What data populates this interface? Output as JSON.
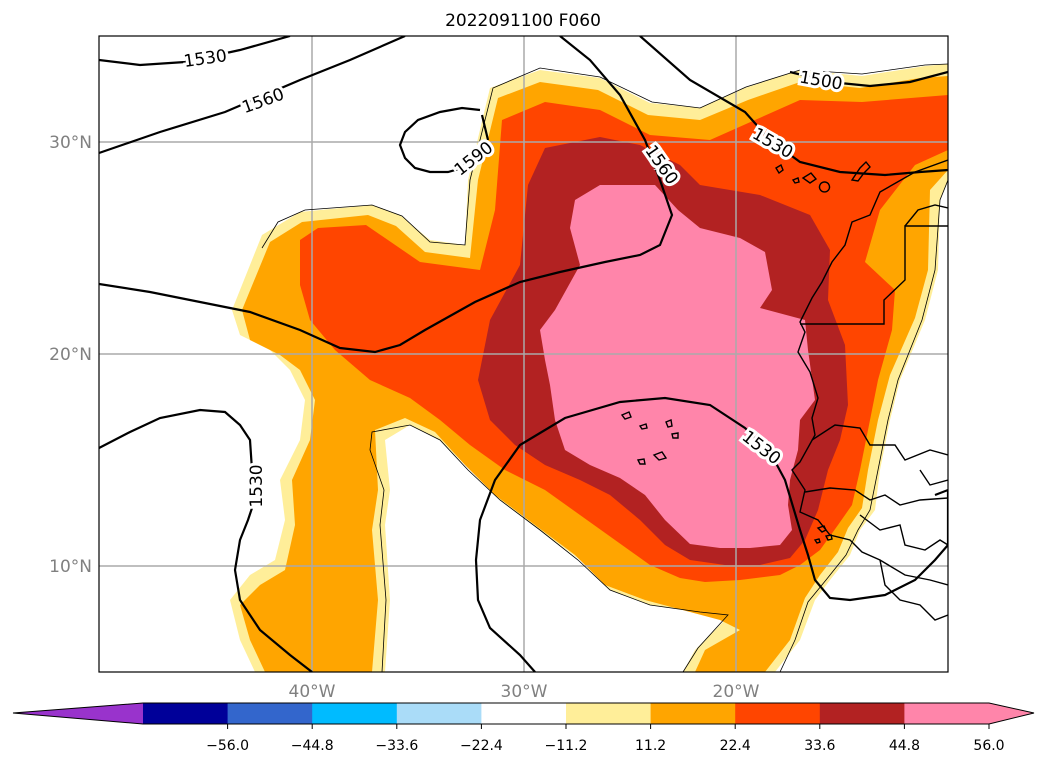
{
  "title": "2022091100 F060",
  "map": {
    "lat_labels": [
      "30°N",
      "20°N",
      "10°N"
    ],
    "lon_labels": [
      "40°W",
      "30°W",
      "20°W"
    ],
    "contour_labels": [
      "1530",
      "1560",
      "1590",
      "1500",
      "1530",
      "1560",
      "1530",
      "1530"
    ]
  },
  "colorbar": {
    "ticks": [
      "−56.0",
      "−44.8",
      "−33.6",
      "−22.4",
      "−11.2",
      "11.2",
      "22.4",
      "33.6",
      "44.8",
      "56.0"
    ],
    "colors": {
      "under": "#9933cc",
      "bins": [
        "#000099",
        "#3366cc",
        "#00bbff",
        "#aadcf8",
        "#ffffff",
        "#ffee99",
        "#ffa500",
        "#ff4500",
        "#b22222",
        "#ff85aa"
      ],
      "over": "#ff85aa"
    }
  },
  "fill_colors": {
    "c1": "#ffee99",
    "c2": "#ffa500",
    "c3": "#ff4500",
    "c4": "#b22222",
    "c5": "#ff85aa"
  }
}
